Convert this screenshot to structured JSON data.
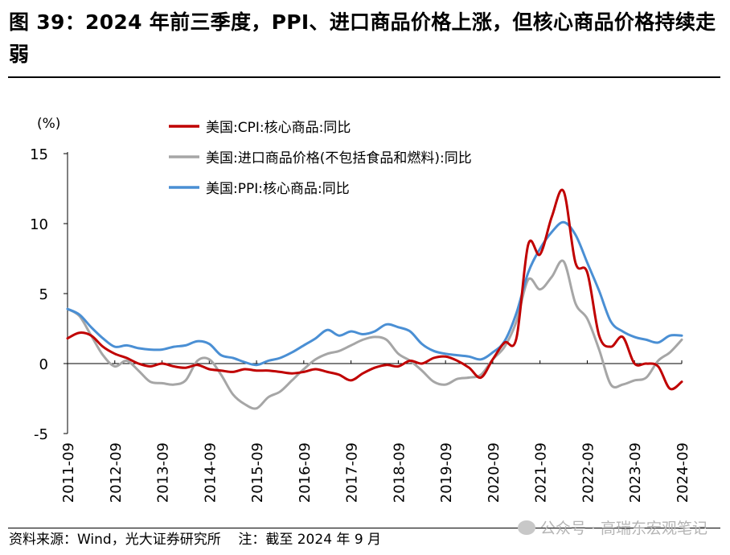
{
  "title": "图 39：2024 年前三季度，PPI、进口商品价格上涨，但核心商品价格持续走弱",
  "source_note": "资料来源：Wind，光大证券研究所    注：截至 2024 年 9 月",
  "watermark": "公众号 · 高瑞东宏观笔记",
  "chart_data": {
    "type": "line",
    "unit_label": "(%)",
    "ylim": [
      -5,
      15
    ],
    "yticks": [
      -5,
      0,
      5,
      10,
      15
    ],
    "xlim": [
      "2011-09",
      "2024-09"
    ],
    "xtick_labels": [
      "2011-09",
      "2012-09",
      "2013-09",
      "2014-09",
      "2015-09",
      "2016-09",
      "2017-09",
      "2018-09",
      "2019-09",
      "2020-09",
      "2021-09",
      "2022-09",
      "2023-09",
      "2024-09"
    ],
    "legend_position": "top",
    "series": [
      {
        "name": "美国:CPI:核心商品:同比",
        "color": "#c00000",
        "points": [
          [
            "2011-09",
            1.8
          ],
          [
            "2011-12",
            2.2
          ],
          [
            "2012-03",
            2.0
          ],
          [
            "2012-06",
            1.2
          ],
          [
            "2012-09",
            0.7
          ],
          [
            "2012-12",
            0.4
          ],
          [
            "2013-03",
            0.0
          ],
          [
            "2013-06",
            -0.2
          ],
          [
            "2013-09",
            0.0
          ],
          [
            "2013-12",
            -0.2
          ],
          [
            "2014-03",
            -0.3
          ],
          [
            "2014-06",
            -0.1
          ],
          [
            "2014-09",
            -0.4
          ],
          [
            "2014-12",
            -0.5
          ],
          [
            "2015-03",
            -0.6
          ],
          [
            "2015-06",
            -0.4
          ],
          [
            "2015-09",
            -0.5
          ],
          [
            "2015-12",
            -0.5
          ],
          [
            "2016-03",
            -0.6
          ],
          [
            "2016-06",
            -0.7
          ],
          [
            "2016-09",
            -0.6
          ],
          [
            "2016-12",
            -0.4
          ],
          [
            "2017-03",
            -0.6
          ],
          [
            "2017-06",
            -0.8
          ],
          [
            "2017-09",
            -1.2
          ],
          [
            "2017-12",
            -0.7
          ],
          [
            "2018-03",
            -0.3
          ],
          [
            "2018-06",
            -0.1
          ],
          [
            "2018-09",
            -0.2
          ],
          [
            "2018-12",
            0.2
          ],
          [
            "2019-03",
            0.0
          ],
          [
            "2019-06",
            0.4
          ],
          [
            "2019-09",
            0.5
          ],
          [
            "2019-12",
            0.2
          ],
          [
            "2020-03",
            -0.3
          ],
          [
            "2020-06",
            -1.0
          ],
          [
            "2020-09",
            0.3
          ],
          [
            "2020-12",
            1.5
          ],
          [
            "2021-03",
            1.8
          ],
          [
            "2021-06",
            8.5
          ],
          [
            "2021-09",
            7.8
          ],
          [
            "2021-12",
            10.5
          ],
          [
            "2022-03",
            12.3
          ],
          [
            "2022-06",
            7.2
          ],
          [
            "2022-09",
            6.5
          ],
          [
            "2022-12",
            2.0
          ],
          [
            "2023-03",
            1.2
          ],
          [
            "2023-06",
            1.9
          ],
          [
            "2023-09",
            0.0
          ],
          [
            "2023-12",
            0.0
          ],
          [
            "2024-03",
            -0.2
          ],
          [
            "2024-06",
            -1.8
          ],
          [
            "2024-09",
            -1.3
          ]
        ]
      },
      {
        "name": "美国:进口商品价格(不包括食品和燃料):同比",
        "color": "#a6a6a6",
        "points": [
          [
            "2011-09",
            3.9
          ],
          [
            "2011-12",
            3.4
          ],
          [
            "2012-03",
            2.0
          ],
          [
            "2012-06",
            0.6
          ],
          [
            "2012-09",
            -0.2
          ],
          [
            "2012-12",
            0.2
          ],
          [
            "2013-03",
            -0.5
          ],
          [
            "2013-06",
            -1.3
          ],
          [
            "2013-09",
            -1.4
          ],
          [
            "2013-12",
            -1.5
          ],
          [
            "2014-03",
            -1.2
          ],
          [
            "2014-06",
            0.2
          ],
          [
            "2014-09",
            0.3
          ],
          [
            "2014-12",
            -0.8
          ],
          [
            "2015-03",
            -2.2
          ],
          [
            "2015-06",
            -2.9
          ],
          [
            "2015-09",
            -3.2
          ],
          [
            "2015-12",
            -2.4
          ],
          [
            "2016-03",
            -2.0
          ],
          [
            "2016-06",
            -1.2
          ],
          [
            "2016-09",
            -0.4
          ],
          [
            "2016-12",
            0.3
          ],
          [
            "2017-03",
            0.7
          ],
          [
            "2017-06",
            0.9
          ],
          [
            "2017-09",
            1.3
          ],
          [
            "2017-12",
            1.7
          ],
          [
            "2018-03",
            1.9
          ],
          [
            "2018-06",
            1.7
          ],
          [
            "2018-09",
            0.7
          ],
          [
            "2018-12",
            0.2
          ],
          [
            "2019-03",
            -0.5
          ],
          [
            "2019-06",
            -1.3
          ],
          [
            "2019-09",
            -1.5
          ],
          [
            "2019-12",
            -1.1
          ],
          [
            "2020-03",
            -1.0
          ],
          [
            "2020-06",
            -0.8
          ],
          [
            "2020-09",
            0.3
          ],
          [
            "2020-12",
            1.2
          ],
          [
            "2021-03",
            3.0
          ],
          [
            "2021-06",
            6.0
          ],
          [
            "2021-09",
            5.3
          ],
          [
            "2021-12",
            6.2
          ],
          [
            "2022-03",
            7.3
          ],
          [
            "2022-06",
            4.3
          ],
          [
            "2022-09",
            3.2
          ],
          [
            "2022-12",
            1.0
          ],
          [
            "2023-03",
            -1.5
          ],
          [
            "2023-06",
            -1.5
          ],
          [
            "2023-09",
            -1.2
          ],
          [
            "2023-12",
            -1.0
          ],
          [
            "2024-03",
            0.2
          ],
          [
            "2024-06",
            0.8
          ],
          [
            "2024-09",
            1.7
          ]
        ]
      },
      {
        "name": "美国:PPI:核心商品:同比",
        "color": "#4a8fd4",
        "points": [
          [
            "2011-09",
            3.9
          ],
          [
            "2011-12",
            3.5
          ],
          [
            "2012-03",
            2.6
          ],
          [
            "2012-06",
            1.8
          ],
          [
            "2012-09",
            1.2
          ],
          [
            "2012-12",
            1.3
          ],
          [
            "2013-03",
            1.1
          ],
          [
            "2013-06",
            1.0
          ],
          [
            "2013-09",
            1.0
          ],
          [
            "2013-12",
            1.2
          ],
          [
            "2014-03",
            1.3
          ],
          [
            "2014-06",
            1.6
          ],
          [
            "2014-09",
            1.4
          ],
          [
            "2014-12",
            0.6
          ],
          [
            "2015-03",
            0.4
          ],
          [
            "2015-06",
            0.1
          ],
          [
            "2015-09",
            -0.1
          ],
          [
            "2015-12",
            0.2
          ],
          [
            "2016-03",
            0.4
          ],
          [
            "2016-06",
            0.8
          ],
          [
            "2016-09",
            1.3
          ],
          [
            "2016-12",
            1.8
          ],
          [
            "2017-03",
            2.4
          ],
          [
            "2017-06",
            2.0
          ],
          [
            "2017-09",
            2.3
          ],
          [
            "2017-12",
            2.1
          ],
          [
            "2018-03",
            2.3
          ],
          [
            "2018-06",
            2.8
          ],
          [
            "2018-09",
            2.6
          ],
          [
            "2018-12",
            2.3
          ],
          [
            "2019-03",
            1.4
          ],
          [
            "2019-06",
            0.9
          ],
          [
            "2019-09",
            0.7
          ],
          [
            "2019-12",
            0.6
          ],
          [
            "2020-03",
            0.5
          ],
          [
            "2020-06",
            0.3
          ],
          [
            "2020-09",
            0.8
          ],
          [
            "2020-12",
            1.6
          ],
          [
            "2021-03",
            3.6
          ],
          [
            "2021-06",
            6.5
          ],
          [
            "2021-09",
            8.2
          ],
          [
            "2021-12",
            9.4
          ],
          [
            "2022-03",
            10.1
          ],
          [
            "2022-06",
            9.2
          ],
          [
            "2022-09",
            7.2
          ],
          [
            "2022-12",
            5.2
          ],
          [
            "2023-03",
            3.0
          ],
          [
            "2023-06",
            2.3
          ],
          [
            "2023-09",
            1.9
          ],
          [
            "2023-12",
            1.7
          ],
          [
            "2024-03",
            1.5
          ],
          [
            "2024-06",
            2.0
          ],
          [
            "2024-09",
            2.0
          ]
        ]
      }
    ]
  }
}
